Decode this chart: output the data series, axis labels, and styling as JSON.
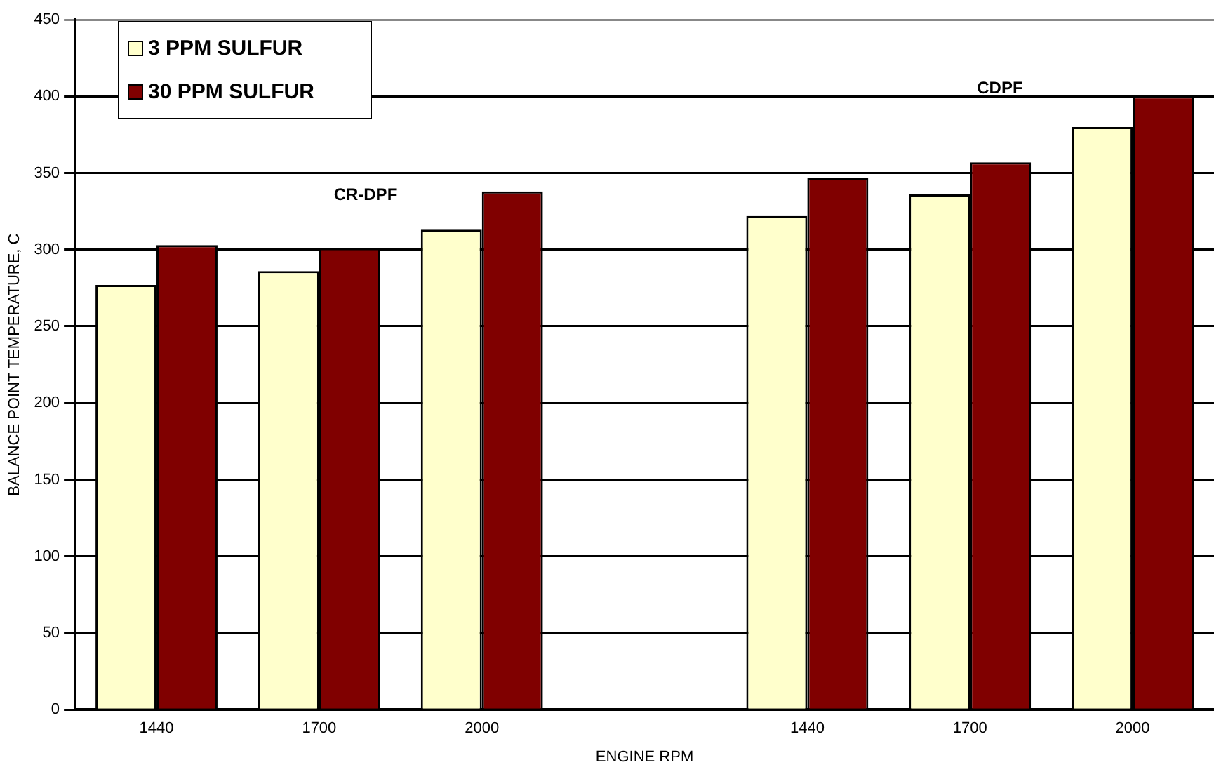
{
  "chart_data": {
    "type": "bar",
    "xlabel": "ENGINE RPM",
    "ylabel": "BALANCE POINT TEMPERATURE, C",
    "categories": [
      "1440",
      "1700",
      "2000",
      null,
      "1440",
      "1700",
      "2000"
    ],
    "series": [
      {
        "name": "3 PPM SULFUR",
        "color": "#ffffcc",
        "values": [
          277,
          286,
          313,
          null,
          322,
          336,
          380
        ]
      },
      {
        "name": "30 PPM SULFUR",
        "color": "#800000",
        "values": [
          303,
          301,
          338,
          null,
          347,
          357,
          400
        ]
      }
    ],
    "ylim": [
      0,
      450
    ],
    "yticks": [
      0,
      50,
      100,
      150,
      200,
      250,
      300,
      350,
      400,
      450
    ],
    "grid": "y",
    "legend": "top left",
    "annotations": [
      "CR-DPF",
      "CDPF"
    ]
  }
}
